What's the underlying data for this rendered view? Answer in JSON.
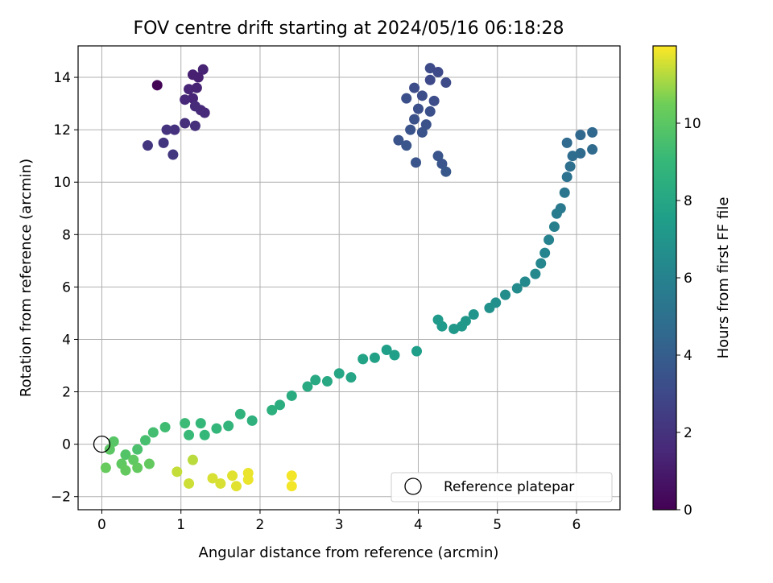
{
  "chart_data": {
    "type": "scatter",
    "title": "FOV centre drift starting at 2024/05/16 06:18:28",
    "xlabel": "Angular distance from reference (arcmin)",
    "ylabel": "Rotation from reference (arcmin)",
    "xlim": [
      -0.3,
      6.55
    ],
    "ylim": [
      -2.5,
      15.2
    ],
    "xticks": [
      0,
      1,
      2,
      3,
      4,
      5,
      6
    ],
    "yticks": [
      -2,
      0,
      2,
      4,
      6,
      8,
      10,
      12,
      14
    ],
    "grid": true,
    "legend": {
      "position": "bottom-right",
      "entries": [
        "Reference platepar"
      ]
    },
    "reference_point": {
      "x": 0,
      "y": 0
    },
    "colorbar": {
      "label": "Hours from first FF file",
      "colormap": "viridis",
      "range": [
        0,
        12
      ],
      "ticks": [
        0,
        2,
        4,
        6,
        8,
        10
      ]
    },
    "points": [
      {
        "x": 0.7,
        "y": 13.7,
        "c": 0.1
      },
      {
        "x": 1.15,
        "y": 14.1,
        "c": 1.2
      },
      {
        "x": 1.28,
        "y": 14.3,
        "c": 1.3
      },
      {
        "x": 1.22,
        "y": 14.0,
        "c": 1.2
      },
      {
        "x": 1.1,
        "y": 13.55,
        "c": 1.4
      },
      {
        "x": 1.2,
        "y": 13.6,
        "c": 1.3
      },
      {
        "x": 1.15,
        "y": 13.2,
        "c": 1.4
      },
      {
        "x": 1.05,
        "y": 13.15,
        "c": 1.5
      },
      {
        "x": 1.25,
        "y": 12.75,
        "c": 1.6
      },
      {
        "x": 1.3,
        "y": 12.65,
        "c": 1.6
      },
      {
        "x": 1.18,
        "y": 12.9,
        "c": 1.7
      },
      {
        "x": 1.05,
        "y": 12.25,
        "c": 1.8
      },
      {
        "x": 1.18,
        "y": 12.15,
        "c": 1.8
      },
      {
        "x": 0.92,
        "y": 12.0,
        "c": 1.9
      },
      {
        "x": 0.82,
        "y": 12.0,
        "c": 2.0
      },
      {
        "x": 0.58,
        "y": 11.4,
        "c": 2.1
      },
      {
        "x": 0.78,
        "y": 11.5,
        "c": 2.1
      },
      {
        "x": 0.9,
        "y": 11.05,
        "c": 2.2
      },
      {
        "x": 4.15,
        "y": 14.35,
        "c": 3.1
      },
      {
        "x": 4.25,
        "y": 14.2,
        "c": 3.0
      },
      {
        "x": 4.15,
        "y": 13.9,
        "c": 3.0
      },
      {
        "x": 4.35,
        "y": 13.8,
        "c": 3.1
      },
      {
        "x": 3.95,
        "y": 13.6,
        "c": 3.2
      },
      {
        "x": 4.05,
        "y": 13.3,
        "c": 3.2
      },
      {
        "x": 3.85,
        "y": 13.2,
        "c": 3.3
      },
      {
        "x": 4.2,
        "y": 13.1,
        "c": 3.2
      },
      {
        "x": 4.0,
        "y": 12.8,
        "c": 3.3
      },
      {
        "x": 4.15,
        "y": 12.7,
        "c": 3.3
      },
      {
        "x": 3.95,
        "y": 12.4,
        "c": 3.4
      },
      {
        "x": 4.1,
        "y": 12.2,
        "c": 3.4
      },
      {
        "x": 3.9,
        "y": 12.0,
        "c": 3.5
      },
      {
        "x": 4.05,
        "y": 11.9,
        "c": 3.5
      },
      {
        "x": 3.75,
        "y": 11.6,
        "c": 3.5
      },
      {
        "x": 3.85,
        "y": 11.4,
        "c": 3.6
      },
      {
        "x": 4.25,
        "y": 11.0,
        "c": 3.6
      },
      {
        "x": 4.3,
        "y": 10.7,
        "c": 3.6
      },
      {
        "x": 4.35,
        "y": 10.4,
        "c": 3.7
      },
      {
        "x": 3.97,
        "y": 10.75,
        "c": 3.6
      },
      {
        "x": 5.88,
        "y": 11.5,
        "c": 4.6
      },
      {
        "x": 6.05,
        "y": 11.8,
        "c": 4.5
      },
      {
        "x": 6.2,
        "y": 11.9,
        "c": 4.5
      },
      {
        "x": 6.05,
        "y": 11.1,
        "c": 4.7
      },
      {
        "x": 6.2,
        "y": 11.25,
        "c": 4.7
      },
      {
        "x": 5.95,
        "y": 11.0,
        "c": 4.8
      },
      {
        "x": 5.92,
        "y": 10.6,
        "c": 4.9
      },
      {
        "x": 5.88,
        "y": 10.2,
        "c": 5.1
      },
      {
        "x": 5.85,
        "y": 9.6,
        "c": 5.3
      },
      {
        "x": 5.8,
        "y": 9.0,
        "c": 5.5
      },
      {
        "x": 5.75,
        "y": 8.8,
        "c": 5.6
      },
      {
        "x": 5.72,
        "y": 8.3,
        "c": 5.8
      },
      {
        "x": 5.65,
        "y": 7.8,
        "c": 6.0
      },
      {
        "x": 5.6,
        "y": 7.3,
        "c": 6.1
      },
      {
        "x": 5.55,
        "y": 6.9,
        "c": 6.2
      },
      {
        "x": 5.48,
        "y": 6.5,
        "c": 6.3
      },
      {
        "x": 5.35,
        "y": 6.2,
        "c": 6.4
      },
      {
        "x": 5.25,
        "y": 5.95,
        "c": 6.5
      },
      {
        "x": 5.1,
        "y": 5.7,
        "c": 6.6
      },
      {
        "x": 4.98,
        "y": 5.4,
        "c": 6.7
      },
      {
        "x": 4.9,
        "y": 5.2,
        "c": 6.8
      },
      {
        "x": 4.7,
        "y": 4.95,
        "c": 7.0
      },
      {
        "x": 4.6,
        "y": 4.7,
        "c": 7.1
      },
      {
        "x": 4.45,
        "y": 4.4,
        "c": 7.2
      },
      {
        "x": 4.3,
        "y": 4.5,
        "c": 7.3
      },
      {
        "x": 4.25,
        "y": 4.75,
        "c": 7.3
      },
      {
        "x": 4.55,
        "y": 4.5,
        "c": 7.2
      },
      {
        "x": 3.98,
        "y": 3.55,
        "c": 7.5
      },
      {
        "x": 3.7,
        "y": 3.4,
        "c": 7.6
      },
      {
        "x": 3.6,
        "y": 3.6,
        "c": 7.6
      },
      {
        "x": 3.45,
        "y": 3.3,
        "c": 7.7
      },
      {
        "x": 3.3,
        "y": 3.25,
        "c": 7.8
      },
      {
        "x": 3.15,
        "y": 2.55,
        "c": 7.9
      },
      {
        "x": 3.0,
        "y": 2.7,
        "c": 8.0
      },
      {
        "x": 2.85,
        "y": 2.4,
        "c": 8.1
      },
      {
        "x": 2.7,
        "y": 2.45,
        "c": 8.1
      },
      {
        "x": 2.6,
        "y": 2.2,
        "c": 8.2
      },
      {
        "x": 2.4,
        "y": 1.85,
        "c": 8.3
      },
      {
        "x": 2.25,
        "y": 1.5,
        "c": 8.4
      },
      {
        "x": 2.15,
        "y": 1.3,
        "c": 8.5
      },
      {
        "x": 1.9,
        "y": 0.9,
        "c": 8.6
      },
      {
        "x": 1.75,
        "y": 1.15,
        "c": 8.7
      },
      {
        "x": 1.6,
        "y": 0.7,
        "c": 8.8
      },
      {
        "x": 1.45,
        "y": 0.6,
        "c": 8.9
      },
      {
        "x": 1.3,
        "y": 0.35,
        "c": 9.0
      },
      {
        "x": 1.25,
        "y": 0.8,
        "c": 9.0
      },
      {
        "x": 1.1,
        "y": 0.35,
        "c": 9.1
      },
      {
        "x": 1.05,
        "y": 0.8,
        "c": 9.2
      },
      {
        "x": 0.8,
        "y": 0.65,
        "c": 9.3
      },
      {
        "x": 0.65,
        "y": 0.45,
        "c": 9.4
      },
      {
        "x": 0.55,
        "y": 0.15,
        "c": 9.5
      },
      {
        "x": 0.45,
        "y": -0.2,
        "c": 9.6
      },
      {
        "x": 0.3,
        "y": -0.4,
        "c": 9.8
      },
      {
        "x": 0.15,
        "y": 0.1,
        "c": 9.9
      },
      {
        "x": 0.1,
        "y": -0.2,
        "c": 10.0
      },
      {
        "x": 0.25,
        "y": -0.75,
        "c": 10.1
      },
      {
        "x": 0.4,
        "y": -0.6,
        "c": 10.1
      },
      {
        "x": 0.6,
        "y": -0.75,
        "c": 10.2
      },
      {
        "x": 0.3,
        "y": -1.0,
        "c": 10.2
      },
      {
        "x": 0.05,
        "y": -0.9,
        "c": 10.3
      },
      {
        "x": 0.45,
        "y": -0.9,
        "c": 10.2
      },
      {
        "x": 1.15,
        "y": -0.6,
        "c": 11.3
      },
      {
        "x": 0.95,
        "y": -1.05,
        "c": 11.4
      },
      {
        "x": 1.1,
        "y": -1.5,
        "c": 11.5
      },
      {
        "x": 1.4,
        "y": -1.3,
        "c": 11.6
      },
      {
        "x": 1.5,
        "y": -1.5,
        "c": 11.6
      },
      {
        "x": 1.65,
        "y": -1.2,
        "c": 11.7
      },
      {
        "x": 1.7,
        "y": -1.6,
        "c": 11.7
      },
      {
        "x": 1.85,
        "y": -1.1,
        "c": 11.8
      },
      {
        "x": 1.85,
        "y": -1.35,
        "c": 11.8
      },
      {
        "x": 2.4,
        "y": -1.2,
        "c": 11.9
      },
      {
        "x": 2.4,
        "y": -1.6,
        "c": 11.9
      }
    ]
  }
}
